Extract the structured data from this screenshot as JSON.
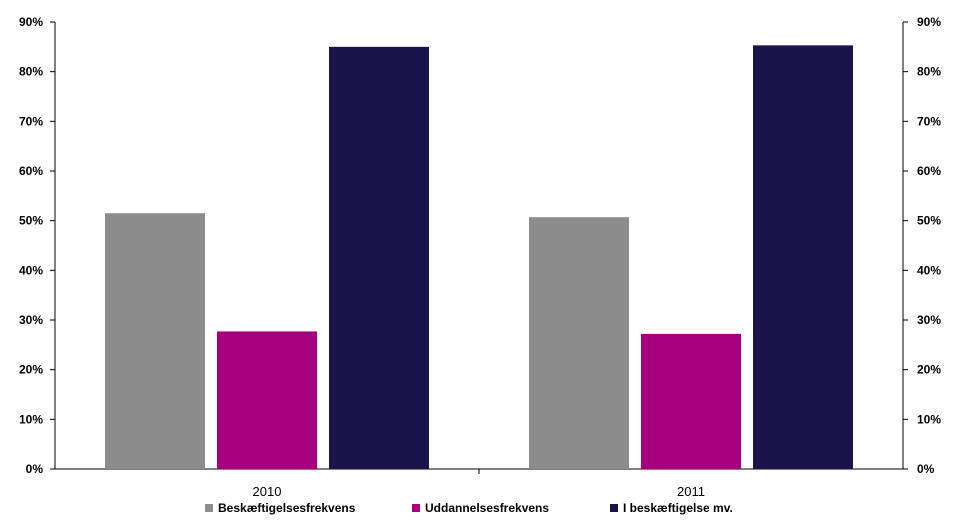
{
  "chart_data": {
    "type": "bar",
    "categories": [
      "2010",
      "2011"
    ],
    "series": [
      {
        "name": "Beskæftigelsesfrekvens",
        "values": [
          51.5,
          50.7
        ],
        "color": "#8c8c8c"
      },
      {
        "name": "Uddannelsesfrekvens",
        "values": [
          27.7,
          27.2
        ],
        "color": "#a5007e"
      },
      {
        "name": "I beskæftigelse mv.",
        "values": [
          85.0,
          85.3
        ],
        "color": "#1b144b"
      }
    ],
    "ylim": [
      0,
      90
    ],
    "yticks": [
      "0%",
      "10%",
      "20%",
      "30%",
      "40%",
      "50%",
      "60%",
      "70%",
      "80%",
      "90%"
    ],
    "secondary_axis": true,
    "grid": false,
    "legend_position": "bottom"
  }
}
